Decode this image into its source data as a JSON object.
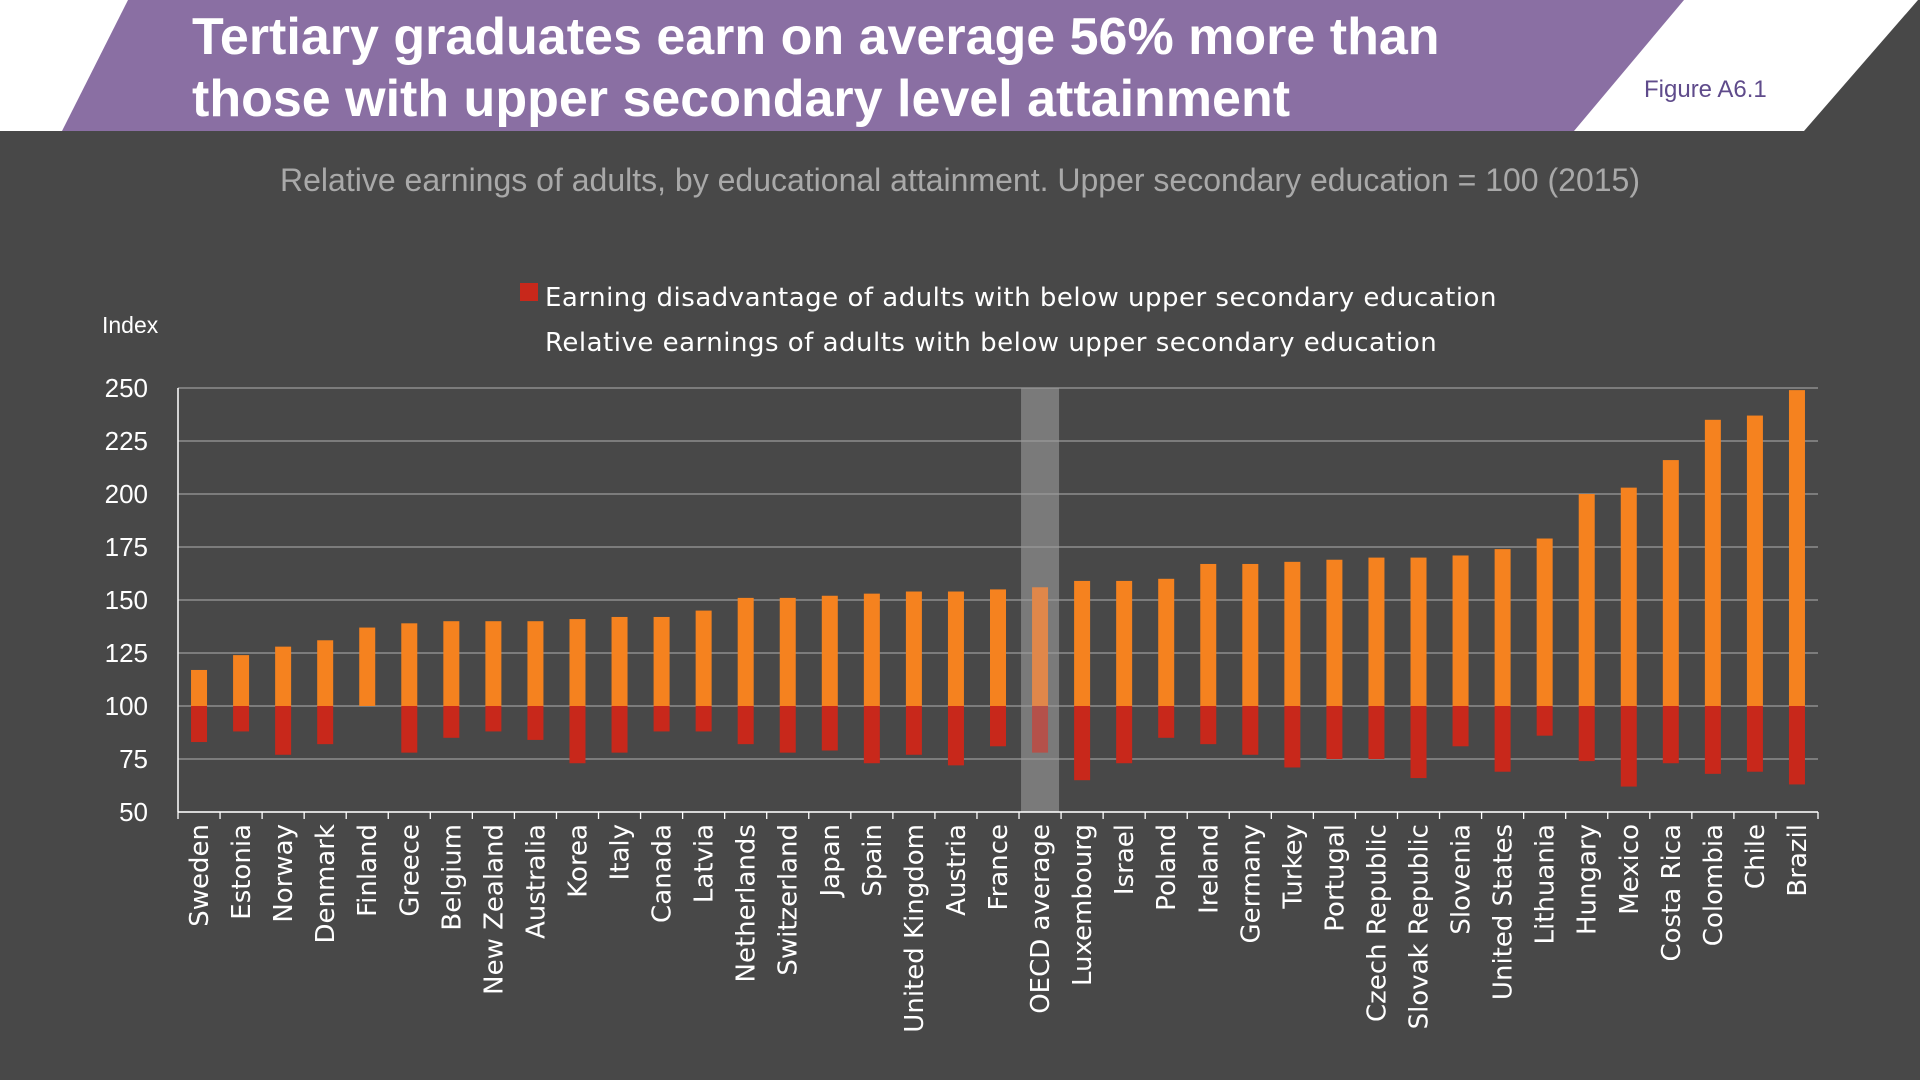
{
  "header": {
    "title_line1": "Tertiary graduates earn on average 56% more than",
    "title_line2": "those with upper secondary level attainment",
    "figure_label": "Figure A6.1"
  },
  "subtitle": "Relative earnings of adults, by educational attainment. Upper secondary education = 100 (2015)",
  "colors": {
    "background": "#484848",
    "header_purple": "#8a6fa3",
    "tertiary_orange": "#f5821f",
    "disadvantage_red": "#c8281b",
    "oecd_highlight": "#7a7a7a"
  },
  "chart_data": {
    "type": "bar",
    "ylabel": "Index",
    "ylim": [
      50,
      250
    ],
    "yticks": [
      50,
      75,
      100,
      125,
      150,
      175,
      200,
      225,
      250
    ],
    "baseline": 100,
    "grid": true,
    "legend": {
      "entries": [
        "Earning disadvantage of adults with below upper secondary education",
        "Relative earnings of adults with below upper secondary education"
      ],
      "placement": "top-center"
    },
    "highlighted_category": "OECD average",
    "categories": [
      "Sweden",
      "Estonia",
      "Norway",
      "Denmark",
      "Finland",
      "Greece",
      "Belgium",
      "New Zealand",
      "Australia",
      "Korea",
      "Italy",
      "Canada",
      "Latvia",
      "Netherlands",
      "Switzerland",
      "Japan",
      "Spain",
      "United Kingdom",
      "Austria",
      "France",
      "OECD average",
      "Luxembourg",
      "Israel",
      "Poland",
      "Ireland",
      "Germany",
      "Turkey",
      "Portugal",
      "Czech Republic",
      "Slovak Republic",
      "Slovenia",
      "United States",
      "Lithuania",
      "Hungary",
      "Mexico",
      "Costa Rica",
      "Colombia",
      "Chile",
      "Brazil"
    ],
    "series": [
      {
        "values": [
          117,
          124,
          128,
          131,
          137,
          139,
          140,
          140,
          140,
          141,
          142,
          142,
          145,
          151,
          151,
          152,
          153,
          154,
          154,
          155,
          156,
          159,
          159,
          160,
          167,
          167,
          168,
          169,
          170,
          170,
          171,
          174,
          179,
          200,
          203,
          216,
          235,
          237,
          249
        ]
      },
      {
        "name": "Relative earnings of adults with below upper secondary education",
        "values": [
          83,
          88,
          77,
          82,
          100,
          78,
          85,
          88,
          84,
          73,
          78,
          88,
          88,
          82,
          78,
          79,
          73,
          77,
          72,
          81,
          78,
          65,
          73,
          85,
          82,
          77,
          71,
          75,
          75,
          66,
          81,
          69,
          86,
          74,
          62,
          73,
          68,
          69,
          63
        ]
      }
    ]
  }
}
